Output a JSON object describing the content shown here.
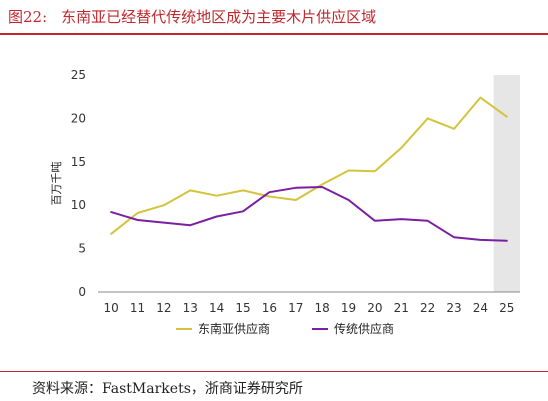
{
  "header": {
    "figure_number": "图22:",
    "title": "东南亚已经替代传统地区成为主要木片供应区域"
  },
  "footer": {
    "source": "资料来源：FastMarkets，浙商证券研究所"
  },
  "chart_data": {
    "type": "line",
    "title": "",
    "xlabel": "",
    "ylabel": "百万千吨",
    "x": [
      "10",
      "11",
      "12",
      "13",
      "14",
      "15",
      "16",
      "17",
      "18",
      "19",
      "20",
      "21",
      "22",
      "23",
      "24",
      "25"
    ],
    "ylim": [
      0,
      25
    ],
    "yticks": [
      "0",
      "5",
      "10",
      "15",
      "20",
      "25"
    ],
    "grid": false,
    "legend": "bottom",
    "shaded_category": "25",
    "series": [
      {
        "name": "东南亚供应商",
        "color": "#d4c33c",
        "values": [
          6.7,
          9.1,
          10.0,
          11.7,
          11.1,
          11.7,
          11.0,
          10.6,
          12.4,
          14.0,
          13.9,
          16.6,
          20.0,
          18.8,
          22.4,
          20.2
        ]
      },
      {
        "name": "传统供应商",
        "color": "#7b1fa2",
        "values": [
          9.2,
          8.3,
          8.0,
          7.7,
          8.7,
          9.3,
          11.5,
          12.0,
          12.1,
          10.6,
          8.2,
          8.4,
          8.2,
          6.3,
          6.0,
          5.9
        ]
      }
    ]
  }
}
